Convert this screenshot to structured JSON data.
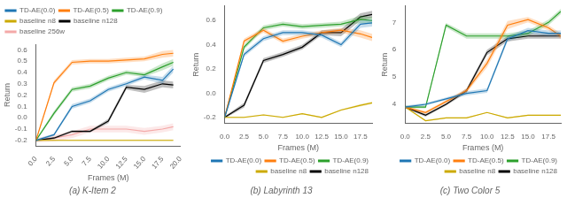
{
  "chart_data": [
    {
      "type": "line",
      "title": "(a) K-Item 2",
      "xlabel": "Frames (M)",
      "ylabel": "Return",
      "x": [
        0,
        2.5,
        5,
        7.5,
        10,
        12.5,
        15,
        17.5,
        19
      ],
      "series": [
        {
          "name": "TD-AE(0.0)",
          "color": "#1f77b4",
          "values": [
            -0.2,
            -0.15,
            0.1,
            0.15,
            0.25,
            0.3,
            0.36,
            0.33,
            0.43
          ],
          "errors": [
            0.01,
            0.01,
            0.02,
            0.02,
            0.02,
            0.02,
            0.02,
            0.03,
            0.03
          ]
        },
        {
          "name": "TD-AE(0.5)",
          "color": "#ff7f0e",
          "values": [
            -0.2,
            0.31,
            0.49,
            0.5,
            0.5,
            0.51,
            0.52,
            0.56,
            0.57
          ],
          "errors": [
            0.01,
            0.02,
            0.02,
            0.02,
            0.02,
            0.02,
            0.02,
            0.03,
            0.03
          ]
        },
        {
          "name": "TD-AE(0.9)",
          "color": "#2ca02c",
          "values": [
            -0.2,
            0.04,
            0.25,
            0.28,
            0.35,
            0.4,
            0.38,
            0.45,
            0.49
          ],
          "errors": [
            0.01,
            0.02,
            0.02,
            0.02,
            0.02,
            0.02,
            0.02,
            0.03,
            0.03
          ]
        },
        {
          "name": "baseline n8",
          "color": "#ccaa00",
          "values": [
            -0.2,
            -0.2,
            -0.2,
            -0.2,
            -0.2,
            -0.2,
            -0.2,
            -0.2,
            -0.2
          ],
          "errors": [
            0.005,
            0.005,
            0.005,
            0.005,
            0.005,
            0.005,
            0.005,
            0.005,
            0.005
          ]
        },
        {
          "name": "baseline n128",
          "color": "#000000",
          "values": [
            -0.2,
            -0.18,
            -0.12,
            -0.12,
            -0.03,
            0.27,
            0.25,
            0.3,
            0.29
          ],
          "errors": [
            0.01,
            0.01,
            0.01,
            0.01,
            0.02,
            0.02,
            0.03,
            0.03,
            0.03
          ]
        },
        {
          "name": "baseline 256w",
          "color": "#f4a9a8",
          "values": [
            -0.2,
            -0.18,
            -0.15,
            -0.1,
            -0.1,
            -0.1,
            -0.12,
            -0.1,
            -0.08
          ],
          "errors": [
            0.02,
            0.03,
            0.03,
            0.03,
            0.03,
            0.03,
            0.03,
            0.03,
            0.03
          ]
        }
      ],
      "xlim": [
        0,
        20
      ],
      "ylim": [
        -0.25,
        0.65
      ],
      "xticks": [
        {
          "value": 0,
          "label": "0.0"
        },
        2.5,
        {
          "value": 5,
          "label": "5.0"
        },
        7.5,
        {
          "value": 10,
          "label": "10.0"
        },
        12.5,
        {
          "value": 15,
          "label": "15.0"
        },
        17.5,
        {
          "value": 20,
          "label": "20.0"
        }
      ],
      "yticks": [
        -0.2,
        -0.1,
        {
          "value": 0,
          "label": "0.0"
        },
        0.1,
        0.2,
        0.3,
        0.4,
        0.5,
        0.6
      ],
      "legend": "upper left",
      "grid": false
    },
    {
      "type": "line",
      "title": "(b) Labyrinth 13",
      "xlabel": "Frames (M)",
      "ylabel": "Return",
      "x": [
        0,
        2.5,
        5,
        7.5,
        10,
        12.5,
        15,
        17.5,
        19
      ],
      "series": [
        {
          "name": "TD-AE(0.0)",
          "color": "#1f77b4",
          "values": [
            -0.2,
            0.32,
            0.45,
            0.5,
            0.5,
            0.48,
            0.4,
            0.57,
            0.58
          ],
          "errors": [
            0.01,
            0.02,
            0.02,
            0.02,
            0.02,
            0.02,
            0.02,
            0.03,
            0.03
          ]
        },
        {
          "name": "TD-AE(0.5)",
          "color": "#ff7f0e",
          "values": [
            -0.2,
            0.43,
            0.52,
            0.43,
            0.47,
            0.5,
            0.52,
            0.49,
            0.46
          ],
          "errors": [
            0.01,
            0.02,
            0.02,
            0.02,
            0.02,
            0.02,
            0.02,
            0.03,
            0.03
          ]
        },
        {
          "name": "TD-AE(0.9)",
          "color": "#2ca02c",
          "values": [
            -0.2,
            0.38,
            0.54,
            0.57,
            0.55,
            0.56,
            0.57,
            0.61,
            0.6
          ],
          "errors": [
            0.01,
            0.02,
            0.02,
            0.02,
            0.02,
            0.02,
            0.02,
            0.03,
            0.03
          ]
        },
        {
          "name": "baseline n8",
          "color": "#ccaa00",
          "values": [
            -0.2,
            -0.2,
            -0.18,
            -0.2,
            -0.17,
            -0.2,
            -0.14,
            -0.1,
            -0.08
          ],
          "errors": [
            0.005,
            0.005,
            0.005,
            0.005,
            0.005,
            0.005,
            0.005,
            0.01,
            0.01
          ]
        },
        {
          "name": "baseline n128",
          "color": "#000000",
          "values": [
            -0.2,
            -0.1,
            0.27,
            0.32,
            0.38,
            0.5,
            0.5,
            0.63,
            0.65
          ],
          "errors": [
            0.01,
            0.02,
            0.02,
            0.02,
            0.02,
            0.02,
            0.03,
            0.03,
            0.03
          ]
        }
      ],
      "xlim": [
        0,
        19
      ],
      "ylim": [
        -0.25,
        0.72
      ],
      "xticks": [
        {
          "value": 0,
          "label": "0.0"
        },
        2.5,
        {
          "value": 5,
          "label": "5.0"
        },
        7.5,
        {
          "value": 10,
          "label": "10.0"
        },
        12.5,
        {
          "value": 15,
          "label": "15.0"
        },
        17.5
      ],
      "yticks": [
        -0.2,
        {
          "value": 0,
          "label": "0.0"
        },
        0.2,
        0.4,
        0.6
      ],
      "legend": "lower right",
      "grid": false
    },
    {
      "type": "line",
      "title": "(c) Two Color 5",
      "xlabel": "Frames (M)",
      "ylabel": "Return",
      "x": [
        0,
        2.5,
        5,
        7.5,
        10,
        12.5,
        15,
        17.5,
        19
      ],
      "series": [
        {
          "name": "TD-AE(0.0)",
          "color": "#1f77b4",
          "values": [
            3.9,
            4.0,
            4.2,
            4.4,
            4.5,
            6.4,
            6.7,
            6.6,
            6.6
          ],
          "errors": [
            0.05,
            0.05,
            0.05,
            0.08,
            0.08,
            0.1,
            0.1,
            0.1,
            0.1
          ]
        },
        {
          "name": "TD-AE(0.5)",
          "color": "#ff7f0e",
          "values": [
            3.9,
            3.7,
            4.1,
            4.5,
            5.5,
            6.9,
            7.1,
            6.8,
            6.5
          ],
          "errors": [
            0.05,
            0.05,
            0.05,
            0.08,
            0.15,
            0.15,
            0.1,
            0.1,
            0.1
          ]
        },
        {
          "name": "TD-AE(0.9)",
          "color": "#2ca02c",
          "values": [
            3.9,
            3.9,
            6.9,
            6.5,
            6.5,
            6.5,
            6.6,
            7.0,
            7.4
          ],
          "errors": [
            0.05,
            0.05,
            0.08,
            0.1,
            0.1,
            0.1,
            0.1,
            0.1,
            0.1
          ]
        },
        {
          "name": "baseline n8",
          "color": "#ccaa00",
          "values": [
            3.9,
            3.4,
            3.5,
            3.5,
            3.7,
            3.5,
            3.6,
            3.6,
            3.6
          ],
          "errors": [
            0.02,
            0.02,
            0.02,
            0.02,
            0.02,
            0.02,
            0.02,
            0.02,
            0.02
          ]
        },
        {
          "name": "baseline n128",
          "color": "#000000",
          "values": [
            3.9,
            3.6,
            4.0,
            4.5,
            5.9,
            6.4,
            6.5,
            6.5,
            6.5
          ],
          "errors": [
            0.05,
            0.05,
            0.05,
            0.08,
            0.1,
            0.1,
            0.1,
            0.1,
            0.1
          ]
        }
      ],
      "xlim": [
        0,
        19
      ],
      "ylim": [
        3.3,
        7.6
      ],
      "xticks": [
        {
          "value": 0,
          "label": "0.0"
        },
        2.5,
        {
          "value": 5,
          "label": "5.0"
        },
        7.5,
        {
          "value": 10,
          "label": "10.0"
        },
        12.5,
        {
          "value": 15,
          "label": "15.0"
        },
        17.5
      ],
      "yticks": [
        4,
        5,
        6,
        7
      ],
      "legend": "lower right",
      "grid": false
    }
  ]
}
